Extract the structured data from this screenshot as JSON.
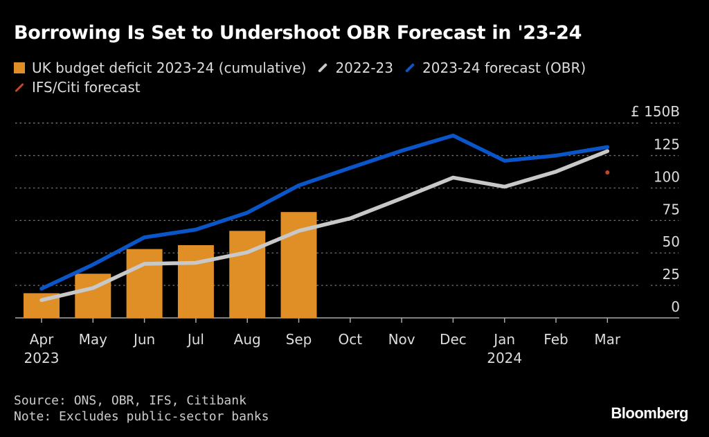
{
  "chart_data": {
    "type": "bar+line",
    "title": "Borrowing Is Set to Undershoot OBR Forecast in '23-24",
    "categories": [
      "Apr",
      "May",
      "Jun",
      "Jul",
      "Aug",
      "Sep",
      "Oct",
      "Nov",
      "Dec",
      "Jan",
      "Feb",
      "Mar"
    ],
    "year_labels": {
      "0": "2023",
      "9": "2024"
    },
    "ylabel": "£ 150B",
    "yticks": [
      0,
      25,
      50,
      75,
      100,
      125
    ],
    "ylim": [
      0,
      150
    ],
    "grid": true,
    "legend_placement": "top-left",
    "series": [
      {
        "name": "UK budget deficit 2023-24 (cumulative)",
        "type": "bar",
        "color": "#e08e26",
        "values": [
          19,
          34,
          53,
          56,
          67,
          81.5,
          null,
          null,
          null,
          null,
          null,
          null
        ]
      },
      {
        "name": "2022-23",
        "type": "line",
        "color": "#c8c8c8",
        "values": [
          13.7,
          23,
          41.6,
          42.4,
          50.5,
          67,
          76.6,
          92,
          108,
          101,
          112.6,
          128.4
        ]
      },
      {
        "name": "2023-24 forecast (OBR)",
        "type": "line",
        "color": "#0a56c8",
        "values": [
          22.5,
          41,
          62,
          68,
          81,
          102,
          115.5,
          128.7,
          140.4,
          121,
          125,
          131.5
        ]
      },
      {
        "name": "IFS/Citi forecast",
        "type": "point",
        "color": "#c8432a",
        "values": [
          null,
          null,
          null,
          null,
          null,
          null,
          null,
          null,
          null,
          null,
          null,
          112
        ]
      }
    ]
  },
  "footer": {
    "source": "Source: ONS, OBR, IFS, Citibank",
    "note": "Note: Excludes public-sector banks",
    "logo": "Bloomberg"
  }
}
